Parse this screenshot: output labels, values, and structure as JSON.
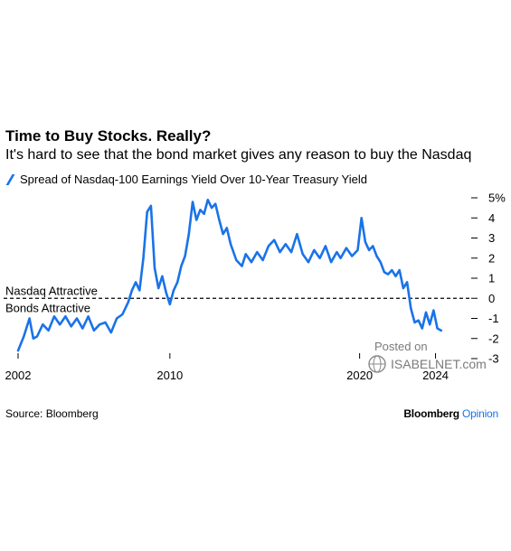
{
  "header": {
    "title": "Time to Buy Stocks. Really?",
    "subtitle": "It's hard to see that the bond market gives any reason to buy the Nasdaq"
  },
  "footer": {
    "source": "Source: Bloomberg",
    "brand_main": "Bloomberg",
    "brand_accent": "Opinion"
  },
  "watermark": {
    "line1": "Posted on",
    "line2": "ISABELNET.com"
  },
  "colors": {
    "series": "#1a73e8",
    "brand_accent": "#1a73e8",
    "watermark": "#7a7a7a"
  },
  "chart_data": {
    "type": "line",
    "title": "Time to Buy Stocks. Really?",
    "subtitle": "It's hard to see that the bond market gives any reason to buy the Nasdaq",
    "legend": "top-left",
    "series": [
      {
        "name": "Spread of Nasdaq-100 Earnings Yield Over 10-Year Treasury Yield",
        "x": [
          2002.0,
          2002.3,
          2002.6,
          2002.8,
          2003.0,
          2003.3,
          2003.6,
          2003.9,
          2004.2,
          2004.5,
          2004.8,
          2005.1,
          2005.4,
          2005.7,
          2006.0,
          2006.3,
          2006.6,
          2006.9,
          2007.2,
          2007.5,
          2007.8,
          2008.0,
          2008.2,
          2008.4,
          2008.6,
          2008.8,
          2009.0,
          2009.2,
          2009.4,
          2009.6,
          2009.8,
          2010.0,
          2010.2,
          2010.4,
          2010.6,
          2010.8,
          2011.0,
          2011.2,
          2011.4,
          2011.6,
          2011.8,
          2012.0,
          2012.2,
          2012.4,
          2012.6,
          2012.8,
          2013.0,
          2013.2,
          2013.5,
          2013.8,
          2014.0,
          2014.3,
          2014.6,
          2014.9,
          2015.2,
          2015.5,
          2015.8,
          2016.1,
          2016.4,
          2016.7,
          2017.0,
          2017.3,
          2017.6,
          2017.9,
          2018.2,
          2018.5,
          2018.8,
          2019.0,
          2019.3,
          2019.6,
          2019.9,
          2020.1,
          2020.3,
          2020.5,
          2020.7,
          2020.9,
          2021.1,
          2021.3,
          2021.5,
          2021.7,
          2021.9,
          2022.1,
          2022.3,
          2022.5,
          2022.7,
          2022.9,
          2023.1,
          2023.3,
          2023.5,
          2023.7,
          2023.9,
          2024.1,
          2024.3
        ],
        "values": [
          -2.6,
          -1.9,
          -1.0,
          -2.0,
          -1.9,
          -1.3,
          -1.6,
          -0.9,
          -1.3,
          -0.9,
          -1.4,
          -1.0,
          -1.5,
          -0.9,
          -1.6,
          -1.3,
          -1.2,
          -1.7,
          -1.0,
          -0.8,
          -0.2,
          0.4,
          0.8,
          0.4,
          2.0,
          4.3,
          4.6,
          1.5,
          0.5,
          1.1,
          0.3,
          -0.3,
          0.4,
          0.8,
          1.6,
          2.1,
          3.2,
          4.8,
          3.9,
          4.4,
          4.2,
          4.9,
          4.5,
          4.7,
          3.9,
          3.2,
          3.5,
          2.7,
          1.9,
          1.6,
          2.2,
          1.8,
          2.3,
          1.9,
          2.6,
          2.9,
          2.3,
          2.7,
          2.3,
          3.2,
          2.2,
          1.8,
          2.4,
          2.0,
          2.6,
          1.8,
          2.3,
          2.0,
          2.5,
          2.1,
          2.4,
          4.0,
          2.8,
          2.4,
          2.6,
          2.1,
          1.8,
          1.3,
          1.2,
          1.4,
          1.1,
          1.4,
          0.5,
          0.8,
          -0.5,
          -1.2,
          -1.1,
          -1.5,
          -0.7,
          -1.3,
          -0.6,
          -1.5,
          -1.6
        ]
      }
    ],
    "xticks": [
      2002,
      2010,
      2020,
      2024
    ],
    "xtick_labels": [
      "2002",
      "2010",
      "2020",
      "2024"
    ],
    "yticks": [
      5,
      4,
      3,
      2,
      1,
      0,
      -1,
      -2,
      -3
    ],
    "ytick_labels": [
      "5%",
      "4",
      "3",
      "2",
      "1",
      "0",
      "-1",
      "-2",
      "-3"
    ],
    "xlim": [
      2002,
      2025.5
    ],
    "ylim": [
      -3,
      5
    ],
    "reference_line": {
      "y": 0,
      "style": "dashed",
      "label_above": "Nasdaq Attractive",
      "label_below": "Bonds Attractive"
    },
    "grid": false
  }
}
